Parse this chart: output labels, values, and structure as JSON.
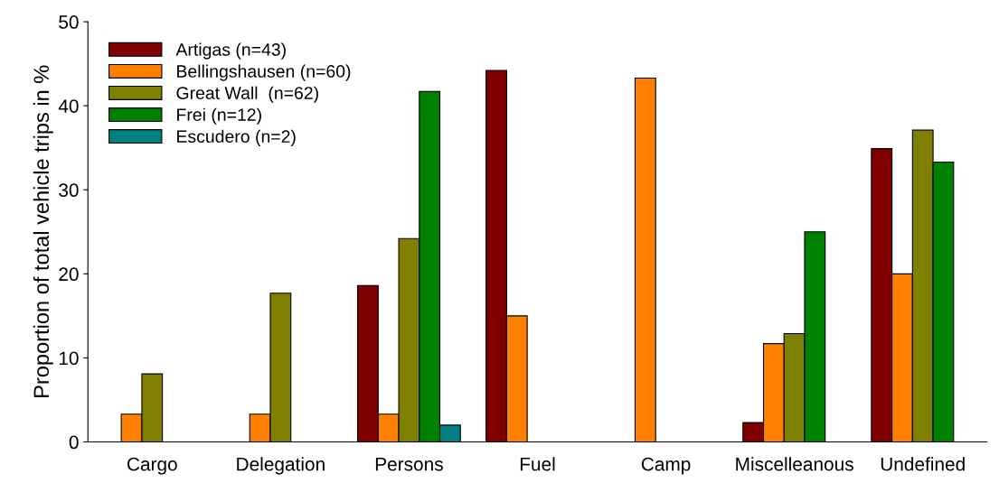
{
  "chart_data": {
    "type": "bar",
    "ylabel": "Proportion of total vehicle trips in %",
    "categories": [
      "Cargo",
      "Delegation",
      "Persons",
      "Fuel",
      "Camp",
      "Miscelleanous",
      "Undefined"
    ],
    "series": [
      {
        "name": "Artigas (n=43)",
        "color": "#800000",
        "values": [
          null,
          null,
          18.6,
          44.2,
          null,
          2.3,
          34.9
        ]
      },
      {
        "name": "Bellingshausen (n=60)",
        "color": "#ff8000",
        "values": [
          3.3,
          3.3,
          3.3,
          15,
          43.3,
          11.7,
          20
        ]
      },
      {
        "name": "Great Wall  (n=62)",
        "color": "#808000",
        "values": [
          8.1,
          17.7,
          24.2,
          null,
          null,
          12.9,
          37.1
        ]
      },
      {
        "name": "Frei (n=12)",
        "color": "#008000",
        "values": [
          null,
          null,
          41.7,
          null,
          null,
          25,
          33.3
        ]
      },
      {
        "name": "Escudero (n=2)",
        "color": "#008080",
        "values": [
          null,
          null,
          2,
          null,
          null,
          null,
          null
        ]
      }
    ],
    "ylim": [
      0,
      50
    ],
    "yticks": [
      0,
      10,
      20,
      30,
      40,
      50
    ],
    "grid": false,
    "legend": "top left"
  }
}
